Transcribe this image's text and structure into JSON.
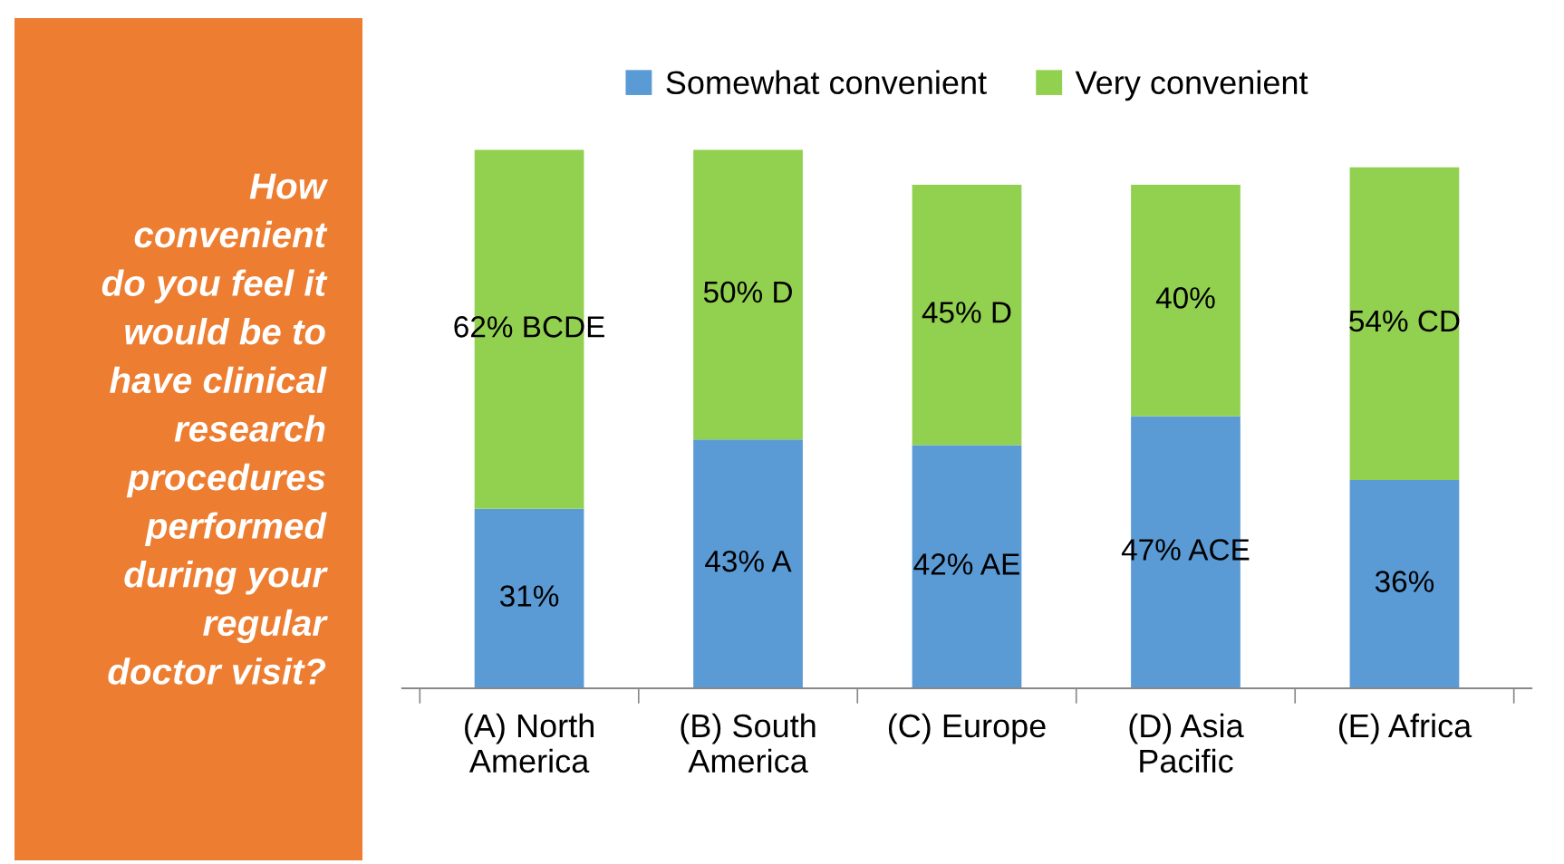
{
  "chart_data": {
    "type": "bar",
    "stacked": true,
    "title": "How\nconvenient\ndo you feel it\nwould be to\nhave clinical\nresearch\nprocedures\nperformed\nduring your\nregular\ndoctor visit?",
    "categories": [
      "(A) North America",
      "(B) South America",
      "(C) Europe",
      "(D) Asia Pacific",
      "(E) Africa"
    ],
    "series": [
      {
        "name": "Somewhat convenient",
        "color": "#5b9bd5",
        "values": [
          31,
          43,
          42,
          47,
          36
        ],
        "value_labels": [
          "31%",
          "43% A",
          "42% AE",
          "47% ACE",
          "36%"
        ]
      },
      {
        "name": "Very convenient",
        "color": "#92d050",
        "values": [
          62,
          50,
          45,
          40,
          54
        ],
        "value_labels": [
          "62% BCDE",
          "50% D",
          "45% D",
          "40%",
          "54% CD"
        ]
      }
    ],
    "tick_labels": "x",
    "legend": "top",
    "grid": false
  }
}
